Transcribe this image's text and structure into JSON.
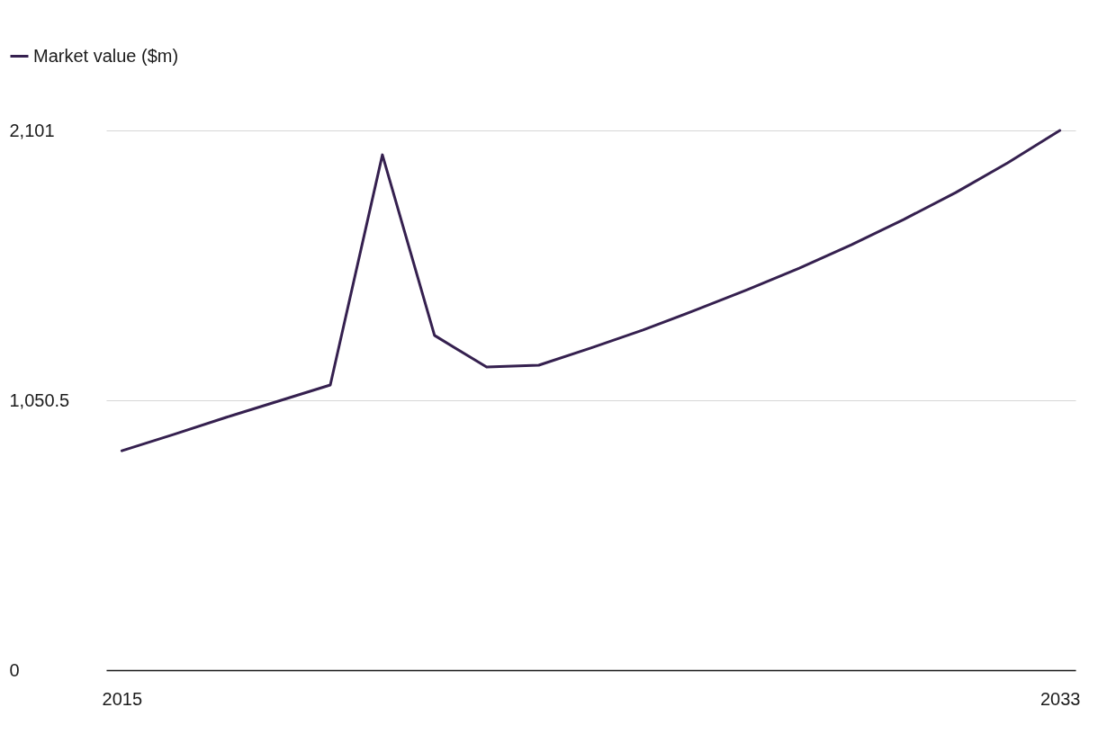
{
  "chart_data": {
    "type": "line",
    "x": [
      2015,
      2016,
      2017,
      2018,
      2019,
      2020,
      2021,
      2022,
      2023,
      2024,
      2025,
      2026,
      2027,
      2028,
      2029,
      2030,
      2031,
      2032,
      2033
    ],
    "series": [
      {
        "name": "Market value ($m)",
        "color": "#35204f",
        "values": [
          854,
          918,
          984,
          1047,
          1110,
          2006,
          1303,
          1180,
          1187,
          1254,
          1324,
          1401,
          1481,
          1565,
          1656,
          1754,
          1859,
          1975,
          2101
        ]
      }
    ],
    "xlim": [
      2014.7,
      2033.3
    ],
    "xticks": [
      2015,
      2033
    ],
    "ylim": [
      0,
      2101
    ],
    "yticks": [
      0,
      {
        "value": 1050.5,
        "label": "1,050.5"
      },
      {
        "value": 2101,
        "label": "2,101"
      }
    ],
    "grid": "y",
    "legend": "top left",
    "marker": "none",
    "line_style": "solid"
  }
}
